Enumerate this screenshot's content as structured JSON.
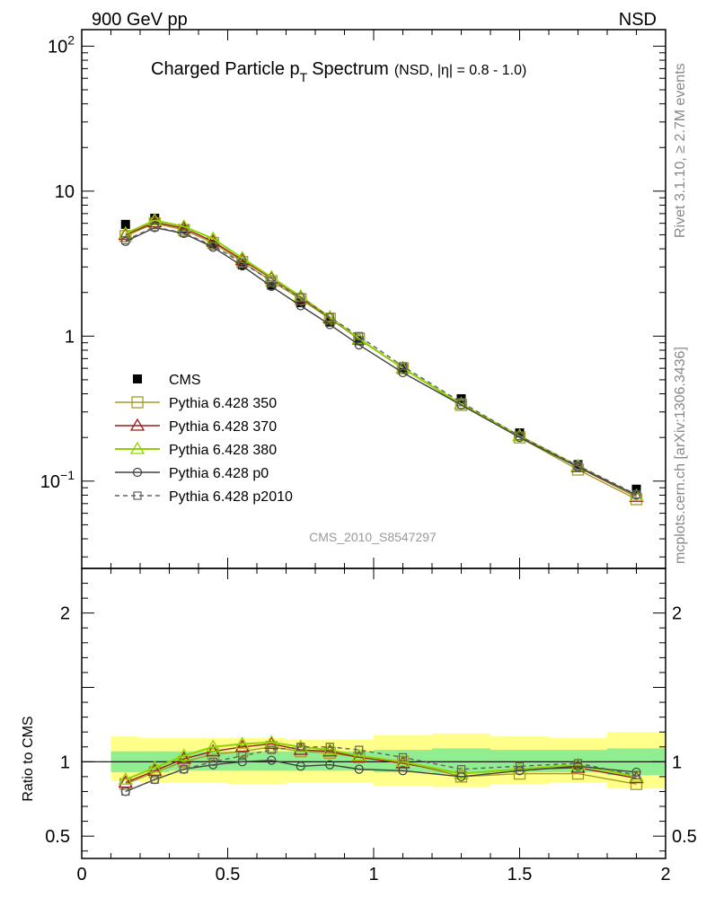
{
  "header": {
    "left_label": "900 GeV pp",
    "right_label": "NSD"
  },
  "title": {
    "main": "Charged Particle p",
    "sub": "T",
    "main2": "Spectrum",
    "suffix": "(NSD, |η| = 0.8 - 1.0)"
  },
  "side_text": {
    "top": "Rivet 3.1.10, ≥ 2.7M events",
    "bottom": "mcplots.cern.ch [arXiv:1306.3436]"
  },
  "analysis_label": "CMS_2010_S8547297",
  "ratio_ylabel": "Ratio to CMS",
  "colors": {
    "data": "#000000",
    "p350": "#a39b26",
    "p370": "#9b1c1c",
    "p380": "#8fd400",
    "p0": "#404040",
    "p2010": "#606060",
    "band_outer": "#ffff8a",
    "band_inner": "#90ee90"
  },
  "chart_data": [
    {
      "type": "scatter",
      "panel": "main",
      "yscale": "log",
      "xlim": [
        0,
        2
      ],
      "ylim": [
        0.025,
        130
      ],
      "yticks": [
        {
          "value": 100,
          "label": "10",
          "exp": "2"
        },
        {
          "value": 10,
          "label": "10"
        },
        {
          "value": 1,
          "label": "1"
        },
        {
          "value": 0.1,
          "label": "10",
          "exp": "−1"
        }
      ],
      "x": [
        0.15,
        0.25,
        0.35,
        0.45,
        0.55,
        0.65,
        0.75,
        0.85,
        0.95,
        1.1,
        1.3,
        1.5,
        1.7,
        1.9
      ],
      "series": [
        {
          "name": "CMS",
          "key": "data",
          "marker": "square-filled",
          "values": [
            5.9,
            6.5,
            5.5,
            4.3,
            3.1,
            2.25,
            1.7,
            1.25,
            0.93,
            0.6,
            0.37,
            0.215,
            0.13,
            0.088
          ]
        },
        {
          "name": "Pythia 6.428 350",
          "key": "p350",
          "marker": "square-open",
          "line": "solid",
          "values": [
            4.9,
            6.0,
            5.4,
            4.4,
            3.25,
            2.4,
            1.8,
            1.32,
            0.96,
            0.6,
            0.335,
            0.2,
            0.12,
            0.075
          ]
        },
        {
          "name": "Pythia 6.428 370",
          "key": "p370",
          "marker": "triangle-open",
          "line": "solid",
          "values": [
            5.0,
            6.1,
            5.55,
            4.5,
            3.35,
            2.5,
            1.85,
            1.33,
            0.95,
            0.6,
            0.34,
            0.205,
            0.125,
            0.078
          ]
        },
        {
          "name": "Pythia 6.428 380",
          "key": "p380",
          "marker": "triangle-open",
          "line": "solid",
          "values": [
            5.1,
            6.3,
            5.7,
            4.7,
            3.45,
            2.55,
            1.88,
            1.35,
            0.96,
            0.6,
            0.34,
            0.205,
            0.127,
            0.079
          ]
        },
        {
          "name": "Pythia 6.428 p0",
          "key": "p0",
          "marker": "circle-open",
          "line": "solid",
          "values": [
            4.5,
            5.6,
            5.1,
            4.1,
            3.05,
            2.2,
            1.62,
            1.2,
            0.87,
            0.56,
            0.335,
            0.2,
            0.125,
            0.08
          ]
        },
        {
          "name": "Pythia 6.428 p2010",
          "key": "p2010",
          "marker": "square-open-small",
          "line": "dashed",
          "values": [
            4.6,
            5.65,
            5.15,
            4.2,
            3.2,
            2.4,
            1.85,
            1.35,
            1.0,
            0.62,
            0.35,
            0.205,
            0.128,
            0.081
          ]
        }
      ]
    },
    {
      "type": "scatter",
      "panel": "ratio",
      "ylabel": "Ratio to CMS",
      "xlim": [
        0,
        2
      ],
      "ylim": [
        0.35,
        2.3
      ],
      "xticks": [
        0,
        0.5,
        1,
        1.5,
        2
      ],
      "xtick_labels": [
        "0",
        "0.5",
        "1",
        "1.5",
        "2"
      ],
      "yticks": [
        0.5,
        1,
        2
      ],
      "ytick_labels": [
        "0.5",
        "1",
        "2"
      ],
      "x": [
        0.15,
        0.25,
        0.35,
        0.45,
        0.55,
        0.65,
        0.75,
        0.85,
        0.95,
        1.1,
        1.3,
        1.5,
        1.7,
        1.9
      ],
      "bins": [
        [
          0.1,
          0.2
        ],
        [
          0.2,
          0.3
        ],
        [
          0.3,
          0.4
        ],
        [
          0.4,
          0.5
        ],
        [
          0.5,
          0.6
        ],
        [
          0.6,
          0.7
        ],
        [
          0.7,
          0.8
        ],
        [
          0.8,
          0.9
        ],
        [
          0.9,
          1.0
        ],
        [
          1.0,
          1.2
        ],
        [
          1.2,
          1.4
        ],
        [
          1.4,
          1.6
        ],
        [
          1.6,
          1.8
        ],
        [
          1.8,
          2.0
        ]
      ],
      "band_outer": [
        [
          0.87,
          1.17
        ],
        [
          0.86,
          1.16
        ],
        [
          0.86,
          1.16
        ],
        [
          0.86,
          1.16
        ],
        [
          0.85,
          1.16
        ],
        [
          0.85,
          1.16
        ],
        [
          0.86,
          1.15
        ],
        [
          0.86,
          1.15
        ],
        [
          0.86,
          1.15
        ],
        [
          0.84,
          1.18
        ],
        [
          0.83,
          1.19
        ],
        [
          0.85,
          1.17
        ],
        [
          0.86,
          1.16
        ],
        [
          0.82,
          1.2
        ]
      ],
      "band_inner": [
        [
          0.93,
          1.07
        ],
        [
          0.93,
          1.07
        ],
        [
          0.94,
          1.07
        ],
        [
          0.94,
          1.07
        ],
        [
          0.94,
          1.07
        ],
        [
          0.94,
          1.07
        ],
        [
          0.94,
          1.07
        ],
        [
          0.94,
          1.07
        ],
        [
          0.94,
          1.07
        ],
        [
          0.93,
          1.08
        ],
        [
          0.92,
          1.09
        ],
        [
          0.93,
          1.08
        ],
        [
          0.93,
          1.08
        ],
        [
          0.91,
          1.09
        ]
      ],
      "series": [
        {
          "name": "Pythia 6.428 350",
          "key": "p350",
          "marker": "square-open",
          "line": "solid",
          "values": [
            0.85,
            0.93,
            1.0,
            1.05,
            1.07,
            1.1,
            1.07,
            1.06,
            1.03,
            1.0,
            0.9,
            0.92,
            0.92,
            0.85
          ]
        },
        {
          "name": "Pythia 6.428 370",
          "key": "p370",
          "marker": "triangle-open",
          "line": "solid",
          "values": [
            0.86,
            0.94,
            1.02,
            1.07,
            1.1,
            1.12,
            1.08,
            1.07,
            1.03,
            0.99,
            0.92,
            0.95,
            0.96,
            0.89
          ]
        },
        {
          "name": "Pythia 6.428 380",
          "key": "p380",
          "marker": "triangle-open",
          "line": "solid",
          "values": [
            0.88,
            0.96,
            1.04,
            1.1,
            1.12,
            1.13,
            1.1,
            1.08,
            1.04,
            1.0,
            0.92,
            0.95,
            0.98,
            0.9
          ]
        },
        {
          "name": "Pythia 6.428 p0",
          "key": "p0",
          "marker": "circle-open",
          "line": "solid",
          "values": [
            0.8,
            0.88,
            0.95,
            0.98,
            1.0,
            1.01,
            0.97,
            0.98,
            0.95,
            0.94,
            0.9,
            0.94,
            0.97,
            0.93
          ]
        },
        {
          "name": "Pythia 6.428 p2010",
          "key": "p2010",
          "marker": "square-open-small",
          "line": "dashed",
          "values": [
            0.8,
            0.88,
            0.95,
            1.0,
            1.04,
            1.08,
            1.1,
            1.1,
            1.08,
            1.03,
            0.95,
            0.97,
            0.99,
            0.91
          ]
        }
      ]
    }
  ]
}
